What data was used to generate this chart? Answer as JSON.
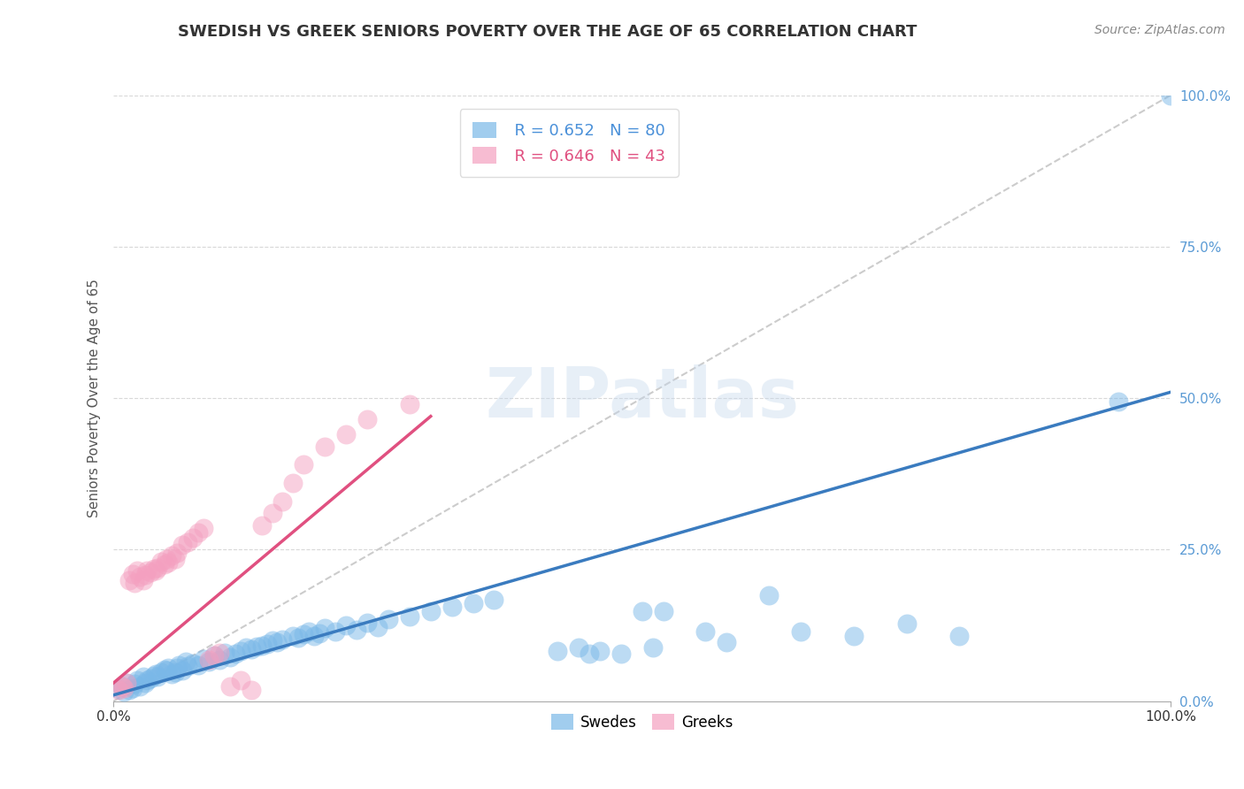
{
  "title": "SWEDISH VS GREEK SENIORS POVERTY OVER THE AGE OF 65 CORRELATION CHART",
  "source": "Source: ZipAtlas.com",
  "ylabel": "Seniors Poverty Over the Age of 65",
  "xlim": [
    0,
    1
  ],
  "ylim": [
    0,
    1
  ],
  "xticks": [
    0.0,
    1.0
  ],
  "xtick_labels": [
    "0.0%",
    "100.0%"
  ],
  "yticks": [
    0.0,
    0.25,
    0.5,
    0.75,
    1.0
  ],
  "ytick_labels": [
    "0.0%",
    "25.0%",
    "50.0%",
    "75.0%",
    "100.0%"
  ],
  "swedes_color": "#7ab8e8",
  "greeks_color": "#f4a0c0",
  "swedes_line_color": "#3a7bbf",
  "greeks_line_color": "#e05080",
  "dashed_line_color": "#cccccc",
  "legend_R_swedes": "0.652",
  "legend_N_swedes": "80",
  "legend_R_greeks": "0.646",
  "legend_N_greeks": "43",
  "title_fontsize": 13,
  "axis_label_fontsize": 11,
  "tick_fontsize": 11,
  "legend_fontsize": 13,
  "watermark_text": "ZIPatlas",
  "background_color": "#ffffff",
  "swedes_line_x": [
    0.0,
    1.0
  ],
  "swedes_line_y": [
    0.01,
    0.51
  ],
  "greeks_line_x": [
    0.0,
    0.3
  ],
  "greeks_line_y": [
    0.03,
    0.47
  ],
  "swedes_scatter_x": [
    0.005,
    0.008,
    0.01,
    0.012,
    0.015,
    0.018,
    0.02,
    0.022,
    0.025,
    0.028,
    0.03,
    0.032,
    0.035,
    0.038,
    0.04,
    0.042,
    0.045,
    0.048,
    0.05,
    0.052,
    0.055,
    0.058,
    0.06,
    0.062,
    0.065,
    0.068,
    0.07,
    0.075,
    0.08,
    0.085,
    0.09,
    0.095,
    0.1,
    0.105,
    0.11,
    0.115,
    0.12,
    0.125,
    0.13,
    0.135,
    0.14,
    0.145,
    0.15,
    0.155,
    0.16,
    0.17,
    0.175,
    0.18,
    0.185,
    0.19,
    0.195,
    0.2,
    0.21,
    0.22,
    0.23,
    0.24,
    0.25,
    0.26,
    0.28,
    0.3,
    0.32,
    0.34,
    0.36,
    0.42,
    0.44,
    0.45,
    0.46,
    0.48,
    0.5,
    0.51,
    0.52,
    0.56,
    0.58,
    0.62,
    0.65,
    0.7,
    0.75,
    0.8,
    0.95,
    1.0
  ],
  "swedes_scatter_y": [
    0.02,
    0.025,
    0.015,
    0.03,
    0.018,
    0.022,
    0.028,
    0.035,
    0.025,
    0.04,
    0.03,
    0.035,
    0.038,
    0.042,
    0.045,
    0.04,
    0.048,
    0.052,
    0.05,
    0.055,
    0.045,
    0.048,
    0.055,
    0.06,
    0.05,
    0.065,
    0.058,
    0.062,
    0.06,
    0.07,
    0.065,
    0.075,
    0.068,
    0.08,
    0.072,
    0.078,
    0.082,
    0.088,
    0.085,
    0.09,
    0.092,
    0.095,
    0.1,
    0.098,
    0.102,
    0.108,
    0.105,
    0.11,
    0.115,
    0.108,
    0.112,
    0.12,
    0.115,
    0.125,
    0.118,
    0.13,
    0.122,
    0.135,
    0.14,
    0.148,
    0.155,
    0.162,
    0.168,
    0.082,
    0.088,
    0.078,
    0.082,
    0.078,
    0.148,
    0.088,
    0.148,
    0.115,
    0.098,
    0.175,
    0.115,
    0.108,
    0.128,
    0.108,
    0.495,
    1.0
  ],
  "greeks_scatter_x": [
    0.005,
    0.008,
    0.01,
    0.012,
    0.015,
    0.018,
    0.02,
    0.022,
    0.025,
    0.028,
    0.03,
    0.032,
    0.035,
    0.038,
    0.04,
    0.042,
    0.045,
    0.048,
    0.05,
    0.052,
    0.055,
    0.058,
    0.06,
    0.065,
    0.07,
    0.075,
    0.08,
    0.085,
    0.09,
    0.095,
    0.1,
    0.11,
    0.12,
    0.13,
    0.14,
    0.15,
    0.16,
    0.17,
    0.18,
    0.2,
    0.22,
    0.24,
    0.28
  ],
  "greeks_scatter_y": [
    0.018,
    0.025,
    0.022,
    0.03,
    0.2,
    0.21,
    0.195,
    0.215,
    0.205,
    0.2,
    0.208,
    0.215,
    0.212,
    0.218,
    0.215,
    0.22,
    0.23,
    0.225,
    0.235,
    0.228,
    0.24,
    0.235,
    0.245,
    0.258,
    0.262,
    0.27,
    0.278,
    0.285,
    0.068,
    0.075,
    0.08,
    0.025,
    0.035,
    0.018,
    0.29,
    0.31,
    0.33,
    0.36,
    0.39,
    0.42,
    0.44,
    0.465,
    0.49
  ]
}
